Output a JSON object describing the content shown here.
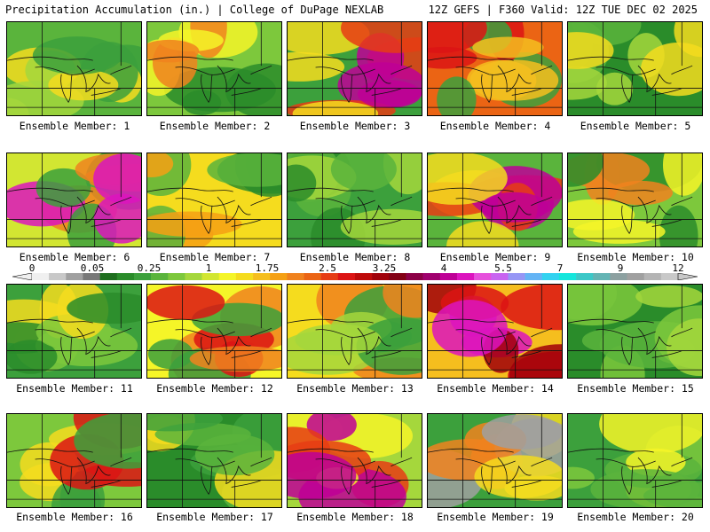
{
  "header": {
    "title": "Precipitation Accumulation (in.) | College of DuPage NEXLAB",
    "run_info": "12Z GEFS | F360 Valid: 12Z TUE DEC 02 2025"
  },
  "colorbar": {
    "labels": [
      "0",
      "0.05",
      "0.25",
      "1",
      "1.75",
      "2.5",
      "3.25",
      "4",
      "5.5",
      "7",
      "9",
      "12"
    ],
    "colors": [
      "#f0f0f0",
      "#c8c8c8",
      "#a0a0a0",
      "#787878",
      "#1e6e1e",
      "#2a8c2a",
      "#3ca03c",
      "#5ab43c",
      "#7dc83c",
      "#a5d73c",
      "#d2e632",
      "#f5f528",
      "#f5dc1e",
      "#f5be1e",
      "#f5a014",
      "#f0821e",
      "#eb6414",
      "#e63c14",
      "#dc1414",
      "#be0a0a",
      "#a0000a",
      "#820014",
      "#8c0046",
      "#a0006e",
      "#be0096",
      "#dc14be",
      "#e650dc",
      "#c864f0",
      "#9696f5",
      "#64b4f5",
      "#32d2f0",
      "#14e6dc",
      "#3cc8c8",
      "#64b4b4",
      "#8ca0a0",
      "#a0a0a0",
      "#b4b4b4",
      "#c8c8c8"
    ]
  },
  "members": [
    {
      "label": "Ensemble Member: 1"
    },
    {
      "label": "Ensemble Member: 2"
    },
    {
      "label": "Ensemble Member: 3"
    },
    {
      "label": "Ensemble Member: 4"
    },
    {
      "label": "Ensemble Member: 5"
    },
    {
      "label": "Ensemble Member: 6"
    },
    {
      "label": "Ensemble Member: 7"
    },
    {
      "label": "Ensemble Member: 8"
    },
    {
      "label": "Ensemble Member: 9"
    },
    {
      "label": "Ensemble Member: 10"
    },
    {
      "label": "Ensemble Member: 11"
    },
    {
      "label": "Ensemble Member: 12"
    },
    {
      "label": "Ensemble Member: 13"
    },
    {
      "label": "Ensemble Member: 14"
    },
    {
      "label": "Ensemble Member: 15"
    },
    {
      "label": "Ensemble Member: 16"
    },
    {
      "label": "Ensemble Member: 17"
    },
    {
      "label": "Ensemble Member: 18"
    },
    {
      "label": "Ensemble Member: 19"
    },
    {
      "label": "Ensemble Member: 20"
    }
  ]
}
